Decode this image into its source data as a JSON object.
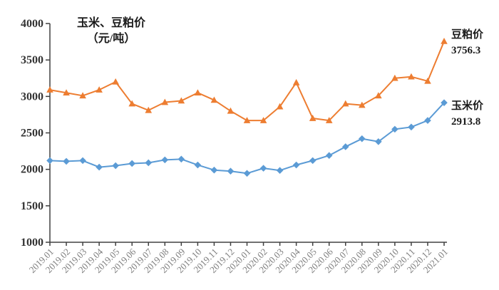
{
  "title": {
    "line1": "玉米、豆粕价",
    "line2": "（元/吨）"
  },
  "series_end_labels": {
    "soybean_meal": {
      "name": "豆粕价",
      "value": "3756.3"
    },
    "corn": {
      "name": "玉米价",
      "value": "2913.8"
    }
  },
  "colors": {
    "soybean_meal": "#ED7D31",
    "corn": "#5B9BD5",
    "axis": "#404040",
    "y_tick_label": "#333333",
    "x_tick_label": "#7f7f7f",
    "background": "#ffffff"
  },
  "chart_data": {
    "type": "line",
    "title": "玉米、豆粕价（元/吨）",
    "xlabel": "",
    "ylabel": "元/吨",
    "ylim": [
      1000,
      4000
    ],
    "yticks": [
      4000,
      3500,
      3000,
      2500,
      2000,
      1500,
      1000
    ],
    "grid": false,
    "legend_position": "right-of-last-point",
    "categories": [
      "2019.01",
      "2019.02",
      "2019.03",
      "2019.04",
      "2019.05",
      "2019.06",
      "2019.07",
      "2019.08",
      "2019.09",
      "2019.10",
      "2019.11",
      "2019.12",
      "2020.01",
      "2020.02",
      "2020.03",
      "2020.04",
      "2020.05",
      "2020.06",
      "2020.07",
      "2020.08",
      "2020.09",
      "2020.10",
      "2020.11",
      "2020.12",
      "2021.01"
    ],
    "series": [
      {
        "name": "豆粕价",
        "color": "#ED7D31",
        "marker": "triangle",
        "values": [
          3090,
          3050,
          3010,
          3090,
          3200,
          2900,
          2810,
          2920,
          2940,
          3050,
          2950,
          2800,
          2670,
          2670,
          2860,
          3190,
          2700,
          2670,
          2900,
          2880,
          3010,
          3250,
          3270,
          3210,
          3756.3
        ]
      },
      {
        "name": "玉米价",
        "color": "#5B9BD5",
        "marker": "diamond",
        "values": [
          2120,
          2110,
          2120,
          2030,
          2050,
          2080,
          2090,
          2130,
          2140,
          2060,
          1990,
          1975,
          1945,
          2015,
          1985,
          2060,
          2120,
          2190,
          2310,
          2420,
          2380,
          2550,
          2580,
          2670,
          2913.8
        ]
      }
    ]
  }
}
